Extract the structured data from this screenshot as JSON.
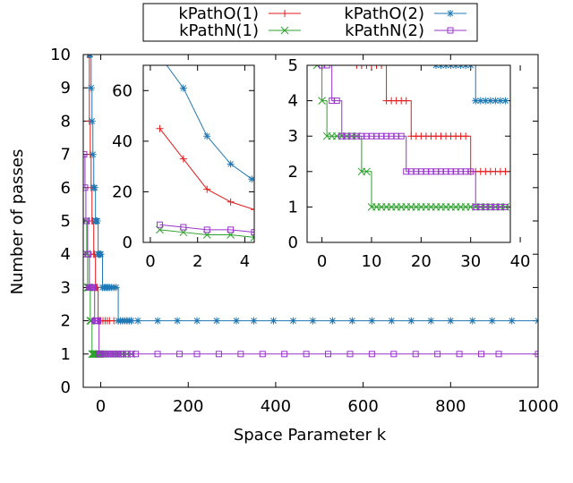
{
  "chart_data": [
    {
      "type": "line",
      "xlabel": "Space Parameter k",
      "ylabel": "Number of passes",
      "xlim": [
        -40,
        1000
      ],
      "ylim": [
        0,
        10
      ],
      "xticks": [
        0,
        200,
        400,
        600,
        800,
        1000
      ],
      "yticks": [
        0,
        1,
        2,
        3,
        4,
        5,
        6,
        7,
        8,
        9,
        10
      ],
      "legend": "top-center",
      "series": [
        {
          "name": "kPathO(1)",
          "color": "#e41a1c",
          "marker": "plus",
          "x": [
            -30,
            -28,
            -26,
            -24,
            -22,
            -20,
            -18,
            -16,
            -14,
            -12,
            -10,
            -8,
            -6,
            -4,
            -2,
            0,
            5,
            10,
            15,
            20,
            30,
            40,
            50,
            60,
            70
          ],
          "y": [
            10,
            10,
            8,
            7,
            6,
            5,
            5,
            4,
            4,
            3,
            3,
            3,
            2,
            2,
            2,
            2,
            2,
            2,
            2,
            2,
            2,
            2,
            2,
            2,
            2
          ]
        },
        {
          "name": "kPathN(1)",
          "color": "#2ca02c",
          "marker": "x",
          "x": [
            -34,
            -32,
            -30,
            -28,
            -26,
            -24,
            -22,
            -20,
            -18,
            -16,
            -14,
            -12,
            -10,
            -8,
            -6,
            -4,
            -2,
            0,
            5,
            10,
            20,
            30,
            40,
            50,
            60,
            70
          ],
          "y": [
            5,
            4,
            3,
            3,
            3,
            2,
            2,
            1,
            1,
            1,
            1,
            1,
            1,
            1,
            1,
            1,
            1,
            1,
            1,
            1,
            1,
            1,
            1,
            1,
            1,
            1
          ]
        },
        {
          "name": "kPathO(2)",
          "color": "#1f78b4",
          "marker": "star",
          "x": [
            -26,
            -24,
            -22,
            -20,
            -18,
            -16,
            -14,
            -12,
            -10,
            -8,
            -6,
            -4,
            -2,
            0,
            4,
            8,
            12,
            16,
            20,
            25,
            30,
            35,
            40,
            45,
            50,
            55,
            60,
            65,
            70,
            85,
            130,
            175,
            220,
            265,
            310,
            350,
            395,
            440,
            485,
            530,
            575,
            620,
            665,
            710,
            755,
            800,
            850,
            895,
            940,
            1000
          ],
          "y": [
            10,
            10,
            9,
            8,
            7,
            6,
            6,
            5,
            5,
            5,
            4,
            4,
            4,
            4,
            3,
            3,
            3,
            3,
            3,
            3,
            3,
            3,
            2,
            2,
            2,
            2,
            2,
            2,
            2,
            2,
            2,
            2,
            2,
            2,
            2,
            2,
            2,
            2,
            2,
            2,
            2,
            2,
            2,
            2,
            2,
            2,
            2,
            2,
            2,
            2
          ]
        },
        {
          "name": "kPathN(2)",
          "color": "#9933cc",
          "marker": "square",
          "x": [
            -38,
            -36,
            -34,
            -32,
            -30,
            -28,
            -26,
            -24,
            -22,
            -20,
            -18,
            -16,
            -14,
            -12,
            -10,
            -8,
            -6,
            -4,
            -2,
            0,
            5,
            10,
            15,
            20,
            25,
            30,
            35,
            40,
            45,
            50,
            60,
            70,
            80,
            130,
            180,
            220,
            270,
            320,
            370,
            420,
            470,
            520,
            570,
            620,
            670,
            720,
            770,
            820,
            870,
            910,
            1000
          ],
          "y": [
            7,
            6,
            5,
            5,
            4,
            4,
            3,
            3,
            3,
            3,
            3,
            3,
            2,
            2,
            2,
            2,
            2,
            1,
            1,
            1,
            1,
            1,
            1,
            1,
            1,
            1,
            1,
            1,
            1,
            1,
            1,
            1,
            1,
            1,
            1,
            1,
            1,
            1,
            1,
            1,
            1,
            1,
            1,
            1,
            1,
            1,
            1,
            1,
            1,
            1,
            1
          ]
        }
      ]
    },
    {
      "type": "line",
      "xlim": [
        -0.3,
        4.4
      ],
      "ylim": [
        0,
        70
      ],
      "xticks": [
        0,
        2,
        4
      ],
      "yticks": [
        0,
        20,
        40,
        60
      ],
      "series": [
        {
          "name": "kPathO(1)",
          "color": "#e41a1c",
          "marker": "plus",
          "x": [
            0.4,
            1.4,
            2.4,
            3.4,
            4.4
          ],
          "y": [
            45,
            33,
            21,
            16,
            13
          ]
        },
        {
          "name": "kPathN(1)",
          "color": "#2ca02c",
          "marker": "x",
          "x": [
            0.4,
            1.4,
            2.4,
            3.4,
            4.4
          ],
          "y": [
            5,
            4,
            3,
            3,
            2
          ]
        },
        {
          "name": "kPathO(2)",
          "color": "#1f78b4",
          "marker": "star",
          "x": [
            0.3,
            1.4,
            2.4,
            3.4,
            4.3
          ],
          "y": [
            75,
            61,
            42,
            31,
            25
          ]
        },
        {
          "name": "kPathN(2)",
          "color": "#9933cc",
          "marker": "square",
          "x": [
            0.4,
            1.4,
            2.4,
            3.4,
            4.4
          ],
          "y": [
            7,
            6,
            5,
            5,
            4
          ]
        }
      ]
    },
    {
      "type": "line",
      "xlim": [
        -3,
        38
      ],
      "ylim": [
        0,
        5
      ],
      "xticks": [
        0,
        10,
        20,
        30,
        40
      ],
      "yticks": [
        0,
        1,
        2,
        3,
        4,
        5
      ],
      "series": [
        {
          "name": "kPathO(1)",
          "color": "#e41a1c",
          "marker": "plus",
          "x": [
            7,
            8,
            9,
            10,
            11,
            12,
            13,
            14,
            15,
            16,
            17,
            18,
            19,
            20,
            21,
            22,
            23,
            24,
            25,
            26,
            27,
            28,
            29,
            30,
            31,
            32,
            33,
            34,
            35,
            36,
            37
          ],
          "y": [
            5,
            5,
            5,
            5,
            5,
            5,
            4,
            4,
            4,
            4,
            4,
            3,
            3,
            3,
            3,
            3,
            3,
            3,
            3,
            3,
            3,
            3,
            3,
            2,
            2,
            2,
            2,
            2,
            2,
            2,
            2
          ]
        },
        {
          "name": "kPathN(1)",
          "color": "#2ca02c",
          "marker": "x",
          "x": [
            -1,
            0,
            1,
            2,
            3,
            4,
            5,
            6,
            7,
            8,
            9,
            10,
            11,
            12,
            13,
            14,
            15,
            16,
            17,
            18,
            19,
            20,
            21,
            22,
            23,
            24,
            25,
            26,
            27,
            28,
            29,
            30,
            31,
            32,
            33,
            34,
            35,
            36,
            37
          ],
          "y": [
            5,
            4,
            3,
            3,
            3,
            3,
            3,
            3,
            3,
            2,
            2,
            1,
            1,
            1,
            1,
            1,
            1,
            1,
            1,
            1,
            1,
            1,
            1,
            1,
            1,
            1,
            1,
            1,
            1,
            1,
            1,
            1,
            1,
            1,
            1,
            1,
            1,
            1,
            1
          ]
        },
        {
          "name": "kPathO(2)",
          "color": "#1f78b4",
          "marker": "star",
          "x": [
            23,
            24,
            25,
            26,
            27,
            28,
            29,
            30,
            31,
            32,
            33,
            34,
            35,
            36,
            37
          ],
          "y": [
            5,
            5,
            5,
            5,
            5,
            5,
            5,
            5,
            4,
            4,
            4,
            4,
            4,
            4,
            4
          ]
        },
        {
          "name": "kPathN(2)",
          "color": "#9933cc",
          "marker": "square",
          "x": [
            0,
            1,
            2,
            3,
            4,
            5,
            6,
            7,
            8,
            9,
            10,
            11,
            12,
            13,
            14,
            15,
            16,
            17,
            18,
            19,
            20,
            21,
            22,
            23,
            24,
            25,
            26,
            27,
            28,
            29,
            30,
            31,
            32,
            33,
            34,
            35,
            36,
            37
          ],
          "y": [
            5,
            5,
            4,
            4,
            3,
            3,
            3,
            3,
            3,
            3,
            3,
            3,
            3,
            3,
            3,
            3,
            3,
            2,
            2,
            2,
            2,
            2,
            2,
            2,
            2,
            2,
            2,
            2,
            2,
            2,
            2,
            1,
            1,
            1,
            1,
            1,
            1,
            1
          ]
        }
      ]
    }
  ]
}
